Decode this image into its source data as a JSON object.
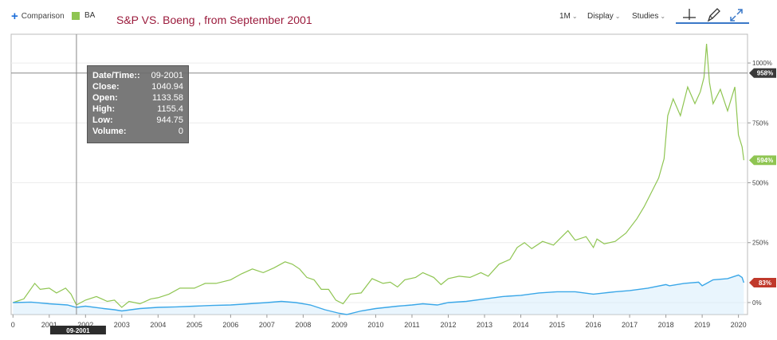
{
  "toolbar": {
    "comparison_label": "Comparison",
    "legend_label": "BA",
    "title": "S&P VS. Boeng , from September 2001",
    "interval_label": "1M",
    "display_label": "Display",
    "studies_label": "Studies",
    "caret": "⌄"
  },
  "colors": {
    "ba": "#8fc552",
    "sp": "#3aa7e8",
    "ba_flag": "#8fc552",
    "sp_flag": "#c0392b",
    "cursor_flag": "#3a3a3a",
    "title": "#9b1b3c"
  },
  "icons": [
    "crosshair-icon",
    "pencil-icon",
    "expand-icon"
  ],
  "crosshair": {
    "y_label": "958%",
    "x_label": "09-2001",
    "x": 2001.75,
    "y": 958
  },
  "tooltip": {
    "rows": [
      {
        "key": "Date/Time::",
        "value": "09-2001"
      },
      {
        "key": "Close:",
        "value": "1040.94"
      },
      {
        "key": "Open:",
        "value": "1133.58"
      },
      {
        "key": "High:",
        "value": "1155.4"
      },
      {
        "key": "Low:",
        "value": "944.75"
      },
      {
        "key": "Volume:",
        "value": "0"
      }
    ]
  },
  "chart_data": {
    "type": "line",
    "title": "S&P VS. Boeng , from September 2001",
    "xlabel": "",
    "ylabel": "",
    "x_ticks": [
      "0",
      "2001",
      "2002",
      "2003",
      "2004",
      "2005",
      "2006",
      "2007",
      "2008",
      "2009",
      "2010",
      "2011",
      "2012",
      "2013",
      "2014",
      "2015",
      "2016",
      "2017",
      "2018",
      "2019",
      "2020"
    ],
    "x_tick_values": [
      2000,
      2001,
      2002,
      2003,
      2004,
      2005,
      2006,
      2007,
      2008,
      2009,
      2010,
      2011,
      2012,
      2013,
      2014,
      2015,
      2016,
      2017,
      2018,
      2019,
      2020
    ],
    "y_ticks": [
      "0%",
      "250%",
      "500%",
      "750%",
      "1000%"
    ],
    "y_tick_values": [
      0,
      250,
      500,
      750,
      1000
    ],
    "xlim": [
      1999.95,
      2020.25
    ],
    "ylim": [
      -50,
      1120
    ],
    "grid": true,
    "end_labels": [
      {
        "series": "BA",
        "text": "594%",
        "y": 594
      },
      {
        "series": "S&P",
        "text": "83%",
        "y": 83
      }
    ],
    "series": [
      {
        "name": "BA",
        "x": [
          2000.0,
          2000.3,
          2000.6,
          2000.75,
          2001.0,
          2001.2,
          2001.45,
          2001.6,
          2001.75,
          2002.0,
          2002.3,
          2002.6,
          2002.8,
          2003.0,
          2003.2,
          2003.5,
          2003.8,
          2004.0,
          2004.3,
          2004.6,
          2005.0,
          2005.3,
          2005.6,
          2006.0,
          2006.3,
          2006.6,
          2006.9,
          2007.2,
          2007.5,
          2007.7,
          2007.9,
          2008.1,
          2008.3,
          2008.5,
          2008.7,
          2008.9,
          2009.1,
          2009.3,
          2009.6,
          2009.9,
          2010.2,
          2010.4,
          2010.6,
          2010.8,
          2011.1,
          2011.3,
          2011.6,
          2011.8,
          2012.0,
          2012.3,
          2012.6,
          2012.9,
          2013.1,
          2013.4,
          2013.7,
          2013.9,
          2014.1,
          2014.3,
          2014.6,
          2014.9,
          2015.1,
          2015.3,
          2015.5,
          2015.8,
          2016.0,
          2016.1,
          2016.3,
          2016.6,
          2016.9,
          2017.2,
          2017.4,
          2017.6,
          2017.8,
          2017.95,
          2018.05,
          2018.2,
          2018.4,
          2018.6,
          2018.8,
          2018.95,
          2019.05,
          2019.12,
          2019.2,
          2019.3,
          2019.5,
          2019.7,
          2019.9,
          2020.0,
          2020.1,
          2020.15
        ],
        "values": [
          0,
          15,
          80,
          55,
          60,
          40,
          60,
          35,
          -10,
          10,
          25,
          5,
          10,
          -20,
          5,
          -5,
          15,
          20,
          35,
          60,
          60,
          80,
          80,
          95,
          120,
          140,
          125,
          145,
          170,
          160,
          140,
          105,
          95,
          55,
          55,
          10,
          -5,
          35,
          40,
          100,
          80,
          85,
          65,
          95,
          105,
          125,
          105,
          75,
          100,
          110,
          105,
          125,
          110,
          160,
          180,
          230,
          250,
          225,
          255,
          240,
          270,
          300,
          260,
          275,
          230,
          265,
          245,
          255,
          290,
          350,
          400,
          460,
          520,
          600,
          780,
          850,
          780,
          900,
          830,
          880,
          940,
          1080,
          920,
          830,
          890,
          800,
          900,
          700,
          650,
          594
        ]
      },
      {
        "name": "S&P",
        "x": [
          2000.0,
          2000.5,
          2001.0,
          2001.5,
          2001.75,
          2002.0,
          2002.5,
          2002.8,
          2003.0,
          2003.5,
          2004.0,
          2004.5,
          2005.0,
          2005.5,
          2006.0,
          2006.5,
          2007.0,
          2007.4,
          2007.8,
          2008.2,
          2008.6,
          2009.0,
          2009.2,
          2009.6,
          2010.0,
          2010.3,
          2010.6,
          2011.0,
          2011.3,
          2011.7,
          2012.0,
          2012.5,
          2013.0,
          2013.5,
          2014.0,
          2014.5,
          2015.0,
          2015.5,
          2016.0,
          2016.3,
          2016.6,
          2017.0,
          2017.5,
          2018.0,
          2018.1,
          2018.5,
          2018.9,
          2019.0,
          2019.3,
          2019.7,
          2020.0,
          2020.1,
          2020.15
        ],
        "values": [
          0,
          2,
          -5,
          -10,
          -20,
          -15,
          -25,
          -30,
          -35,
          -25,
          -20,
          -18,
          -15,
          -12,
          -10,
          -5,
          0,
          5,
          0,
          -10,
          -30,
          -45,
          -50,
          -35,
          -25,
          -20,
          -15,
          -10,
          -5,
          -10,
          0,
          5,
          15,
          25,
          30,
          40,
          45,
          45,
          35,
          40,
          45,
          50,
          60,
          75,
          70,
          80,
          85,
          70,
          95,
          100,
          115,
          105,
          83
        ]
      }
    ]
  }
}
